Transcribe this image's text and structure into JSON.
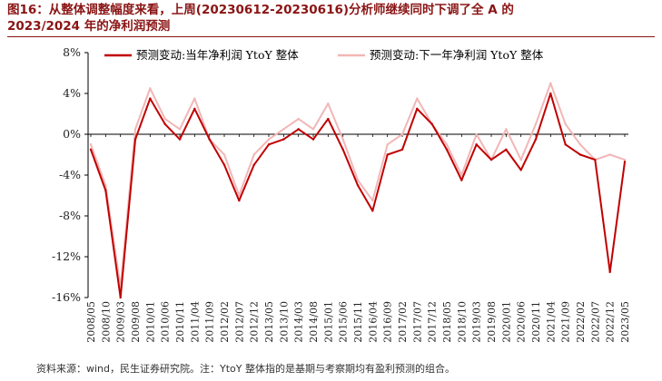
{
  "title_line1": "图16：从整体调整幅度来看，上周(20230612-20230616)分析师继续同时下调了全 A 的",
  "title_line2": "2023/2024 年的净利润预测",
  "source": "资料来源：wind，民生证券研究院。注：YtoY 整体指的是基期与考察期均有盈利预测的组合。",
  "colors": {
    "series1": "#c00000",
    "series2": "#f2b6b6",
    "title": "#8a1414",
    "axis": "#000000"
  },
  "chart_data": {
    "type": "line",
    "title": "",
    "xlabel": "",
    "ylabel": "",
    "ylim": [
      -16,
      8
    ],
    "yticks": [
      -16,
      -12,
      -8,
      -4,
      0,
      4,
      8
    ],
    "ytick_labels": [
      "-16%",
      "-12%",
      "-8%",
      "-4%",
      "0%",
      "4%",
      "8%"
    ],
    "grid": false,
    "legend_position": "top",
    "x": [
      "2008/05",
      "2008/10",
      "2009/03",
      "2009/08",
      "2010/01",
      "2010/06",
      "2010/11",
      "2011/04",
      "2011/09",
      "2012/02",
      "2012/07",
      "2012/12",
      "2013/05",
      "2013/10",
      "2014/03",
      "2014/08",
      "2015/01",
      "2015/06",
      "2015/11",
      "2016/04",
      "2016/09",
      "2017/02",
      "2017/07",
      "2017/12",
      "2018/05",
      "2018/10",
      "2019/03",
      "2019/08",
      "2020/01",
      "2020/06",
      "2020/11",
      "2021/04",
      "2021/09",
      "2022/02",
      "2022/07",
      "2022/12",
      "2023/05"
    ],
    "series": [
      {
        "name": "预测变动:当年净利润 YtoY 整体",
        "values": [
          -1.5,
          -5.5,
          -16.0,
          -0.5,
          3.5,
          1.0,
          -0.5,
          2.5,
          -0.5,
          -3.0,
          -6.5,
          -3.0,
          -1.0,
          -0.5,
          0.5,
          -0.5,
          1.5,
          -1.5,
          -5.0,
          -7.5,
          -2.0,
          -1.5,
          2.5,
          1.0,
          -1.5,
          -4.5,
          -1.0,
          -2.5,
          -1.5,
          -3.5,
          -0.5,
          4.0,
          -1.0,
          -2.0,
          -2.5,
          -13.5,
          -2.7
        ]
      },
      {
        "name": "预测变动:下一年净利润 YtoY 整体",
        "values": [
          -1.0,
          -5.0,
          -15.0,
          0.5,
          4.5,
          1.5,
          0.5,
          3.5,
          -0.5,
          -2.0,
          -6.0,
          -2.0,
          -0.5,
          0.5,
          1.5,
          0.5,
          3.0,
          -0.5,
          -4.5,
          -6.5,
          -1.0,
          0.0,
          3.5,
          1.0,
          -1.0,
          -4.0,
          0.0,
          -2.5,
          0.5,
          -2.5,
          1.0,
          5.0,
          1.0,
          -1.0,
          -2.5,
          -2.0,
          -2.5
        ]
      }
    ]
  }
}
